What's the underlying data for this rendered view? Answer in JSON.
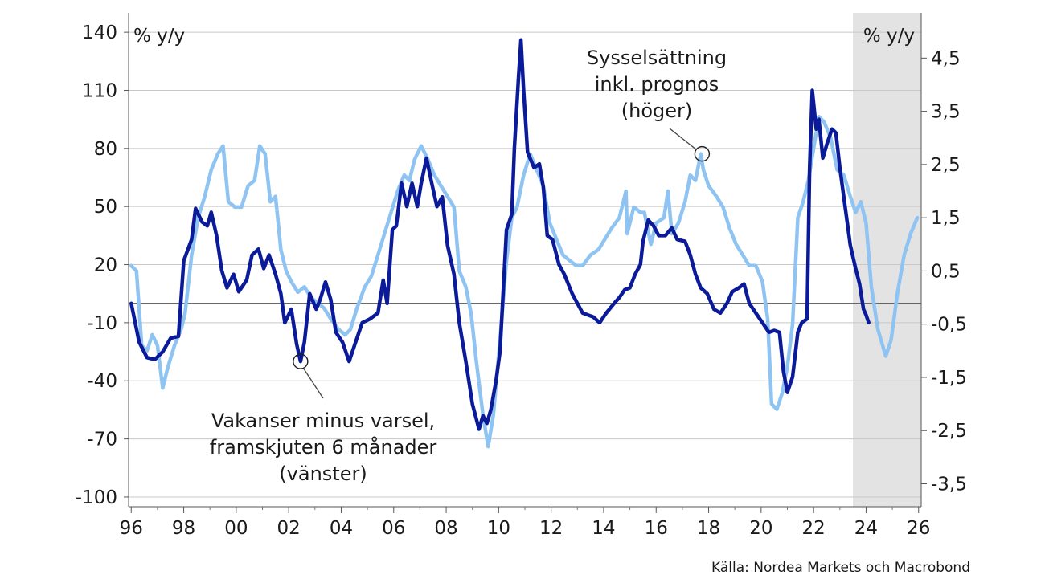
{
  "chart_data": {
    "type": "line",
    "left_axis": {
      "unit_label": "% y/y",
      "ylim": [
        -105,
        150
      ],
      "ticks": [
        140,
        110,
        80,
        50,
        20,
        -10,
        -40,
        -70,
        -100
      ],
      "tick_labels": [
        "140",
        "110",
        "80",
        "50",
        "20",
        "-10",
        "-40",
        "-70",
        "-100"
      ]
    },
    "right_axis": {
      "unit_label": "% y/y",
      "ylim": [
        -3.93,
        5.35
      ],
      "ticks": [
        4.5,
        3.5,
        2.5,
        1.5,
        0.5,
        -0.5,
        -1.5,
        -2.5,
        -3.5
      ],
      "tick_labels": [
        "4,5",
        "3,5",
        "2,5",
        "1,5",
        "0,5",
        "-0,5",
        "-1,5",
        "-2,5",
        "-3,5"
      ]
    },
    "x_axis": {
      "xlim": [
        1995.9,
        2026.1
      ],
      "ticks": [
        1996,
        1998,
        2000,
        2002,
        2004,
        2006,
        2008,
        2010,
        2012,
        2014,
        2016,
        2018,
        2020,
        2022,
        2024,
        2026
      ],
      "tick_labels": [
        "96",
        "98",
        "00",
        "02",
        "04",
        "06",
        "08",
        "10",
        "12",
        "14",
        "16",
        "18",
        "20",
        "22",
        "24",
        "26"
      ]
    },
    "forecast_shading": {
      "from": 2023.5,
      "to": 2026.1,
      "color": "#e3e3e3"
    },
    "grid": "horizontal",
    "series": [
      {
        "name": "Vakanser minus varsel, framskjuten 6 månader",
        "axis": "left",
        "color": "#0a1a99",
        "points": [
          [
            1996.0,
            0
          ],
          [
            1996.3,
            -20
          ],
          [
            1996.6,
            -28
          ],
          [
            1996.9,
            -29
          ],
          [
            1997.2,
            -25
          ],
          [
            1997.5,
            -18
          ],
          [
            1997.8,
            -17
          ],
          [
            1998.0,
            22
          ],
          [
            1998.3,
            33
          ],
          [
            1998.45,
            49
          ],
          [
            1998.7,
            42
          ],
          [
            1998.9,
            40
          ],
          [
            1999.05,
            47
          ],
          [
            1999.25,
            35
          ],
          [
            1999.45,
            17
          ],
          [
            1999.65,
            8
          ],
          [
            1999.9,
            15
          ],
          [
            2000.1,
            6
          ],
          [
            2000.4,
            12
          ],
          [
            2000.6,
            25
          ],
          [
            2000.85,
            28
          ],
          [
            2001.05,
            18
          ],
          [
            2001.25,
            25
          ],
          [
            2001.5,
            15
          ],
          [
            2001.7,
            5
          ],
          [
            2001.85,
            -10
          ],
          [
            2002.1,
            -3
          ],
          [
            2002.3,
            -21
          ],
          [
            2002.45,
            -30
          ],
          [
            2002.6,
            -20
          ],
          [
            2002.8,
            5
          ],
          [
            2003.05,
            -3
          ],
          [
            2003.2,
            2
          ],
          [
            2003.4,
            11
          ],
          [
            2003.6,
            2
          ],
          [
            2003.8,
            -15
          ],
          [
            2004.05,
            -20
          ],
          [
            2004.3,
            -30
          ],
          [
            2004.55,
            -20
          ],
          [
            2004.8,
            -10
          ],
          [
            2005.1,
            -8
          ],
          [
            2005.4,
            -5
          ],
          [
            2005.6,
            12
          ],
          [
            2005.75,
            0
          ],
          [
            2005.95,
            38
          ],
          [
            2006.1,
            40
          ],
          [
            2006.3,
            62
          ],
          [
            2006.5,
            50
          ],
          [
            2006.7,
            62
          ],
          [
            2006.9,
            50
          ],
          [
            2007.05,
            62
          ],
          [
            2007.25,
            75
          ],
          [
            2007.45,
            62
          ],
          [
            2007.65,
            50
          ],
          [
            2007.85,
            55
          ],
          [
            2008.05,
            30
          ],
          [
            2008.3,
            15
          ],
          [
            2008.5,
            -10
          ],
          [
            2008.75,
            -30
          ],
          [
            2009.0,
            -52
          ],
          [
            2009.25,
            -65
          ],
          [
            2009.4,
            -58
          ],
          [
            2009.55,
            -62
          ],
          [
            2009.7,
            -55
          ],
          [
            2009.9,
            -40
          ],
          [
            2010.05,
            -25
          ],
          [
            2010.3,
            38
          ],
          [
            2010.5,
            46
          ],
          [
            2010.6,
            80
          ],
          [
            2010.75,
            115
          ],
          [
            2010.85,
            136
          ],
          [
            2010.95,
            110
          ],
          [
            2011.1,
            78
          ],
          [
            2011.35,
            70
          ],
          [
            2011.55,
            72
          ],
          [
            2011.7,
            60
          ],
          [
            2011.85,
            35
          ],
          [
            2012.05,
            33
          ],
          [
            2012.3,
            20
          ],
          [
            2012.5,
            15
          ],
          [
            2012.8,
            5
          ],
          [
            2013.0,
            0
          ],
          [
            2013.2,
            -5
          ],
          [
            2013.4,
            -6
          ],
          [
            2013.6,
            -7
          ],
          [
            2013.85,
            -10
          ],
          [
            2014.1,
            -5
          ],
          [
            2014.4,
            0
          ],
          [
            2014.6,
            3
          ],
          [
            2014.8,
            7
          ],
          [
            2015.0,
            8
          ],
          [
            2015.2,
            15
          ],
          [
            2015.4,
            20
          ],
          [
            2015.5,
            32
          ],
          [
            2015.7,
            43
          ],
          [
            2015.9,
            40
          ],
          [
            2016.1,
            35
          ],
          [
            2016.35,
            35
          ],
          [
            2016.6,
            39
          ],
          [
            2016.8,
            33
          ],
          [
            2017.1,
            32
          ],
          [
            2017.3,
            25
          ],
          [
            2017.5,
            15
          ],
          [
            2017.7,
            8
          ],
          [
            2017.95,
            5
          ],
          [
            2018.2,
            -3
          ],
          [
            2018.45,
            -5
          ],
          [
            2018.7,
            0
          ],
          [
            2018.9,
            6
          ],
          [
            2019.15,
            8
          ],
          [
            2019.35,
            10
          ],
          [
            2019.55,
            0
          ],
          [
            2019.8,
            -5
          ],
          [
            2020.05,
            -10
          ],
          [
            2020.3,
            -15
          ],
          [
            2020.5,
            -14
          ],
          [
            2020.7,
            -15
          ],
          [
            2020.85,
            -35
          ],
          [
            2021.0,
            -46
          ],
          [
            2021.2,
            -38
          ],
          [
            2021.4,
            -15
          ],
          [
            2021.55,
            -10
          ],
          [
            2021.75,
            -8
          ],
          [
            2021.85,
            70
          ],
          [
            2021.95,
            110
          ],
          [
            2022.1,
            90
          ],
          [
            2022.2,
            95
          ],
          [
            2022.35,
            75
          ],
          [
            2022.5,
            82
          ],
          [
            2022.7,
            90
          ],
          [
            2022.85,
            88
          ],
          [
            2023.0,
            70
          ],
          [
            2023.2,
            50
          ],
          [
            2023.4,
            30
          ],
          [
            2023.6,
            18
          ],
          [
            2023.75,
            10
          ],
          [
            2023.9,
            -3
          ],
          [
            2024.0,
            -6
          ],
          [
            2024.1,
            -10
          ]
        ]
      },
      {
        "name": "Sysselsättning inkl. prognos",
        "axis": "right",
        "color": "#8fc4f2",
        "points": [
          [
            1996.0,
            0.6
          ],
          [
            1996.2,
            0.5
          ],
          [
            1996.4,
            -0.9
          ],
          [
            1996.6,
            -1.0
          ],
          [
            1996.8,
            -0.7
          ],
          [
            1997.0,
            -0.9
          ],
          [
            1997.2,
            -1.7
          ],
          [
            1997.4,
            -1.3
          ],
          [
            1997.65,
            -0.9
          ],
          [
            1997.9,
            -0.6
          ],
          [
            1998.05,
            -0.3
          ],
          [
            1998.3,
            0.8
          ],
          [
            1998.55,
            1.5
          ],
          [
            1998.8,
            1.9
          ],
          [
            1999.05,
            2.4
          ],
          [
            1999.3,
            2.7
          ],
          [
            1999.5,
            2.85
          ],
          [
            1999.7,
            1.8
          ],
          [
            1999.95,
            1.7
          ],
          [
            2000.2,
            1.7
          ],
          [
            2000.45,
            2.1
          ],
          [
            2000.7,
            2.2
          ],
          [
            2000.9,
            2.85
          ],
          [
            2001.1,
            2.7
          ],
          [
            2001.3,
            1.8
          ],
          [
            2001.5,
            1.9
          ],
          [
            2001.7,
            0.9
          ],
          [
            2001.9,
            0.5
          ],
          [
            2002.1,
            0.3
          ],
          [
            2002.35,
            0.1
          ],
          [
            2002.6,
            0.2
          ],
          [
            2002.85,
            0.0
          ],
          [
            2003.1,
            -0.1
          ],
          [
            2003.35,
            -0.2
          ],
          [
            2003.6,
            -0.4
          ],
          [
            2003.9,
            -0.6
          ],
          [
            2004.15,
            -0.7
          ],
          [
            2004.35,
            -0.6
          ],
          [
            2004.6,
            -0.2
          ],
          [
            2004.9,
            0.2
          ],
          [
            2005.15,
            0.4
          ],
          [
            2005.4,
            0.8
          ],
          [
            2005.65,
            1.2
          ],
          [
            2005.9,
            1.6
          ],
          [
            2006.15,
            2.0
          ],
          [
            2006.4,
            2.3
          ],
          [
            2006.6,
            2.2
          ],
          [
            2006.8,
            2.6
          ],
          [
            2007.05,
            2.85
          ],
          [
            2007.3,
            2.6
          ],
          [
            2007.55,
            2.3
          ],
          [
            2007.8,
            2.1
          ],
          [
            2008.05,
            1.9
          ],
          [
            2008.3,
            1.7
          ],
          [
            2008.5,
            0.5
          ],
          [
            2008.75,
            0.2
          ],
          [
            2008.95,
            -0.3
          ],
          [
            2009.15,
            -1.2
          ],
          [
            2009.4,
            -2.2
          ],
          [
            2009.6,
            -2.8
          ],
          [
            2009.8,
            -2.2
          ],
          [
            2010.05,
            -0.8
          ],
          [
            2010.3,
            0.7
          ],
          [
            2010.5,
            1.5
          ],
          [
            2010.7,
            1.7
          ],
          [
            2010.95,
            2.3
          ],
          [
            2011.2,
            2.7
          ],
          [
            2011.45,
            2.4
          ],
          [
            2011.7,
            2.1
          ],
          [
            2011.95,
            1.4
          ],
          [
            2012.2,
            1.1
          ],
          [
            2012.45,
            0.8
          ],
          [
            2012.7,
            0.7
          ],
          [
            2012.95,
            0.6
          ],
          [
            2013.2,
            0.6
          ],
          [
            2013.5,
            0.8
          ],
          [
            2013.8,
            0.9
          ],
          [
            2014.05,
            1.1
          ],
          [
            2014.3,
            1.3
          ],
          [
            2014.6,
            1.5
          ],
          [
            2014.85,
            2.0
          ],
          [
            2014.9,
            1.2
          ],
          [
            2015.15,
            1.7
          ],
          [
            2015.4,
            1.6
          ],
          [
            2015.55,
            1.6
          ],
          [
            2015.8,
            1.0
          ],
          [
            2016.0,
            1.4
          ],
          [
            2016.3,
            1.5
          ],
          [
            2016.45,
            2.0
          ],
          [
            2016.6,
            1.2
          ],
          [
            2016.85,
            1.4
          ],
          [
            2017.1,
            1.8
          ],
          [
            2017.3,
            2.3
          ],
          [
            2017.5,
            2.2
          ],
          [
            2017.7,
            2.7
          ],
          [
            2017.8,
            2.4
          ],
          [
            2018.0,
            2.1
          ],
          [
            2018.3,
            1.9
          ],
          [
            2018.55,
            1.7
          ],
          [
            2018.8,
            1.3
          ],
          [
            2019.05,
            1.0
          ],
          [
            2019.3,
            0.8
          ],
          [
            2019.55,
            0.6
          ],
          [
            2019.8,
            0.6
          ],
          [
            2020.05,
            0.3
          ],
          [
            2020.25,
            -0.4
          ],
          [
            2020.4,
            -2.0
          ],
          [
            2020.6,
            -2.1
          ],
          [
            2020.8,
            -1.8
          ],
          [
            2021.0,
            -1.3
          ],
          [
            2021.2,
            -0.5
          ],
          [
            2021.4,
            1.5
          ],
          [
            2021.6,
            1.8
          ],
          [
            2021.8,
            2.2
          ],
          [
            2022.0,
            2.8
          ],
          [
            2022.2,
            3.4
          ],
          [
            2022.4,
            3.3
          ],
          [
            2022.65,
            3.0
          ],
          [
            2022.9,
            2.4
          ],
          [
            2023.15,
            2.3
          ],
          [
            2023.4,
            1.9
          ],
          [
            2023.6,
            1.6
          ],
          [
            2023.8,
            1.8
          ],
          [
            2024.0,
            1.4
          ],
          [
            2024.2,
            0.2
          ],
          [
            2024.45,
            -0.6
          ],
          [
            2024.75,
            -1.1
          ],
          [
            2024.95,
            -0.8
          ],
          [
            2025.2,
            0.1
          ],
          [
            2025.45,
            0.8
          ],
          [
            2025.7,
            1.2
          ],
          [
            2025.95,
            1.5
          ]
        ]
      }
    ],
    "annotations": [
      {
        "lines": [
          "Sysselsättning",
          "inkl. prognos",
          "(höger)"
        ],
        "target": {
          "x": 2017.75,
          "y": 2.7,
          "axis": "right"
        }
      },
      {
        "lines": [
          "Vakanser minus varsel,",
          "framskjuten 6 månader",
          "(vänster)"
        ],
        "target": {
          "x": 2002.45,
          "y": -30,
          "axis": "left"
        }
      }
    ],
    "source": "Källa: Nordea Markets och Macrobond"
  }
}
